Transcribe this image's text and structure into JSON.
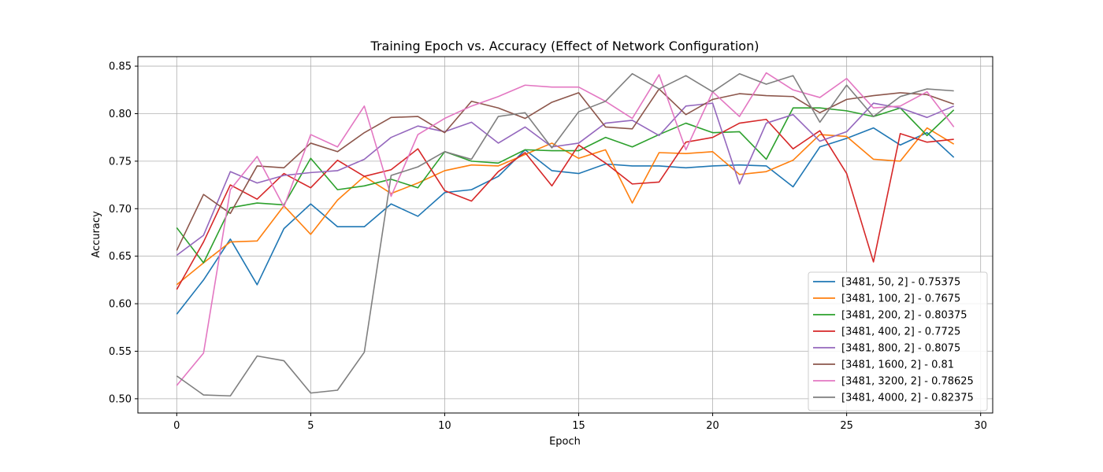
{
  "chart_data": {
    "type": "line",
    "title": "Training Epoch vs. Accuracy (Effect of Network Configuration)",
    "xlabel": "Epoch",
    "ylabel": "Accuracy",
    "xlim": [
      -1.45,
      30.45
    ],
    "ylim": [
      0.485,
      0.86
    ],
    "xticks": [
      0,
      5,
      10,
      15,
      20,
      25,
      30
    ],
    "yticks": [
      0.5,
      0.55,
      0.6,
      0.65,
      0.7,
      0.75,
      0.8,
      0.85
    ],
    "xtick_labels": [
      "0",
      "5",
      "10",
      "15",
      "20",
      "25",
      "30"
    ],
    "ytick_labels": [
      "0.50",
      "0.55",
      "0.60",
      "0.65",
      "0.70",
      "0.75",
      "0.80",
      "0.85"
    ],
    "grid": true,
    "legend_position": "lower-right",
    "x": [
      0,
      1,
      2,
      3,
      4,
      5,
      6,
      7,
      8,
      9,
      10,
      11,
      12,
      13,
      14,
      15,
      16,
      17,
      18,
      19,
      20,
      21,
      22,
      23,
      24,
      25,
      26,
      27,
      28,
      29
    ],
    "series": [
      {
        "name": "[3481, 50, 2] - 0.75375",
        "color": "#1f77b4",
        "values": [
          0.589,
          0.625,
          0.668,
          0.62,
          0.679,
          0.705,
          0.681,
          0.681,
          0.705,
          0.692,
          0.717,
          0.72,
          0.734,
          0.762,
          0.74,
          0.737,
          0.747,
          0.745,
          0.745,
          0.743,
          0.745,
          0.746,
          0.745,
          0.723,
          0.765,
          0.774,
          0.785,
          0.767,
          0.78,
          0.754
        ]
      },
      {
        "name": "[3481, 100, 2] - 0.7675",
        "color": "#ff7f0e",
        "values": [
          0.62,
          0.643,
          0.665,
          0.666,
          0.703,
          0.673,
          0.709,
          0.734,
          0.716,
          0.727,
          0.74,
          0.746,
          0.745,
          0.757,
          0.769,
          0.753,
          0.762,
          0.706,
          0.759,
          0.758,
          0.76,
          0.736,
          0.739,
          0.751,
          0.778,
          0.776,
          0.752,
          0.75,
          0.785,
          0.768
        ]
      },
      {
        "name": "[3481, 200, 2] - 0.80375",
        "color": "#2ca02c",
        "values": [
          0.68,
          0.643,
          0.701,
          0.706,
          0.704,
          0.753,
          0.72,
          0.724,
          0.731,
          0.722,
          0.76,
          0.75,
          0.748,
          0.762,
          0.761,
          0.761,
          0.775,
          0.765,
          0.778,
          0.79,
          0.78,
          0.781,
          0.752,
          0.806,
          0.806,
          0.803,
          0.797,
          0.806,
          0.777,
          0.804
        ]
      },
      {
        "name": "[3481, 400, 2] - 0.7725",
        "color": "#d62728",
        "values": [
          0.615,
          0.665,
          0.725,
          0.71,
          0.737,
          0.722,
          0.751,
          0.734,
          0.741,
          0.763,
          0.719,
          0.708,
          0.739,
          0.759,
          0.724,
          0.767,
          0.748,
          0.726,
          0.728,
          0.77,
          0.775,
          0.79,
          0.794,
          0.763,
          0.782,
          0.737,
          0.644,
          0.779,
          0.77,
          0.773
        ]
      },
      {
        "name": "[3481, 800, 2] - 0.8075",
        "color": "#9467bd",
        "values": [
          0.651,
          0.672,
          0.739,
          0.727,
          0.735,
          0.738,
          0.74,
          0.752,
          0.775,
          0.787,
          0.781,
          0.791,
          0.769,
          0.786,
          0.765,
          0.769,
          0.79,
          0.793,
          0.777,
          0.808,
          0.811,
          0.726,
          0.79,
          0.799,
          0.771,
          0.781,
          0.811,
          0.806,
          0.796,
          0.808
        ]
      },
      {
        "name": "[3481, 1600, 2] - 0.81",
        "color": "#8c564b",
        "values": [
          0.656,
          0.715,
          0.695,
          0.745,
          0.743,
          0.769,
          0.76,
          0.78,
          0.796,
          0.797,
          0.78,
          0.813,
          0.806,
          0.795,
          0.812,
          0.822,
          0.786,
          0.784,
          0.826,
          0.799,
          0.815,
          0.821,
          0.819,
          0.818,
          0.801,
          0.815,
          0.819,
          0.822,
          0.82,
          0.81
        ]
      },
      {
        "name": "[3481, 3200, 2] - 0.78625",
        "color": "#e377c2",
        "values": [
          0.514,
          0.548,
          0.72,
          0.755,
          0.702,
          0.778,
          0.765,
          0.808,
          0.713,
          0.778,
          0.795,
          0.808,
          0.818,
          0.83,
          0.828,
          0.828,
          0.813,
          0.795,
          0.841,
          0.762,
          0.823,
          0.797,
          0.843,
          0.825,
          0.817,
          0.837,
          0.806,
          0.808,
          0.823,
          0.786
        ]
      },
      {
        "name": "[3481, 4000, 2] - 0.82375",
        "color": "#7f7f7f",
        "values": [
          0.524,
          0.504,
          0.503,
          0.545,
          0.54,
          0.506,
          0.509,
          0.549,
          0.735,
          0.744,
          0.76,
          0.752,
          0.797,
          0.801,
          0.764,
          0.802,
          0.813,
          0.842,
          0.826,
          0.84,
          0.823,
          0.842,
          0.831,
          0.84,
          0.791,
          0.83,
          0.797,
          0.818,
          0.826,
          0.824
        ]
      }
    ]
  }
}
